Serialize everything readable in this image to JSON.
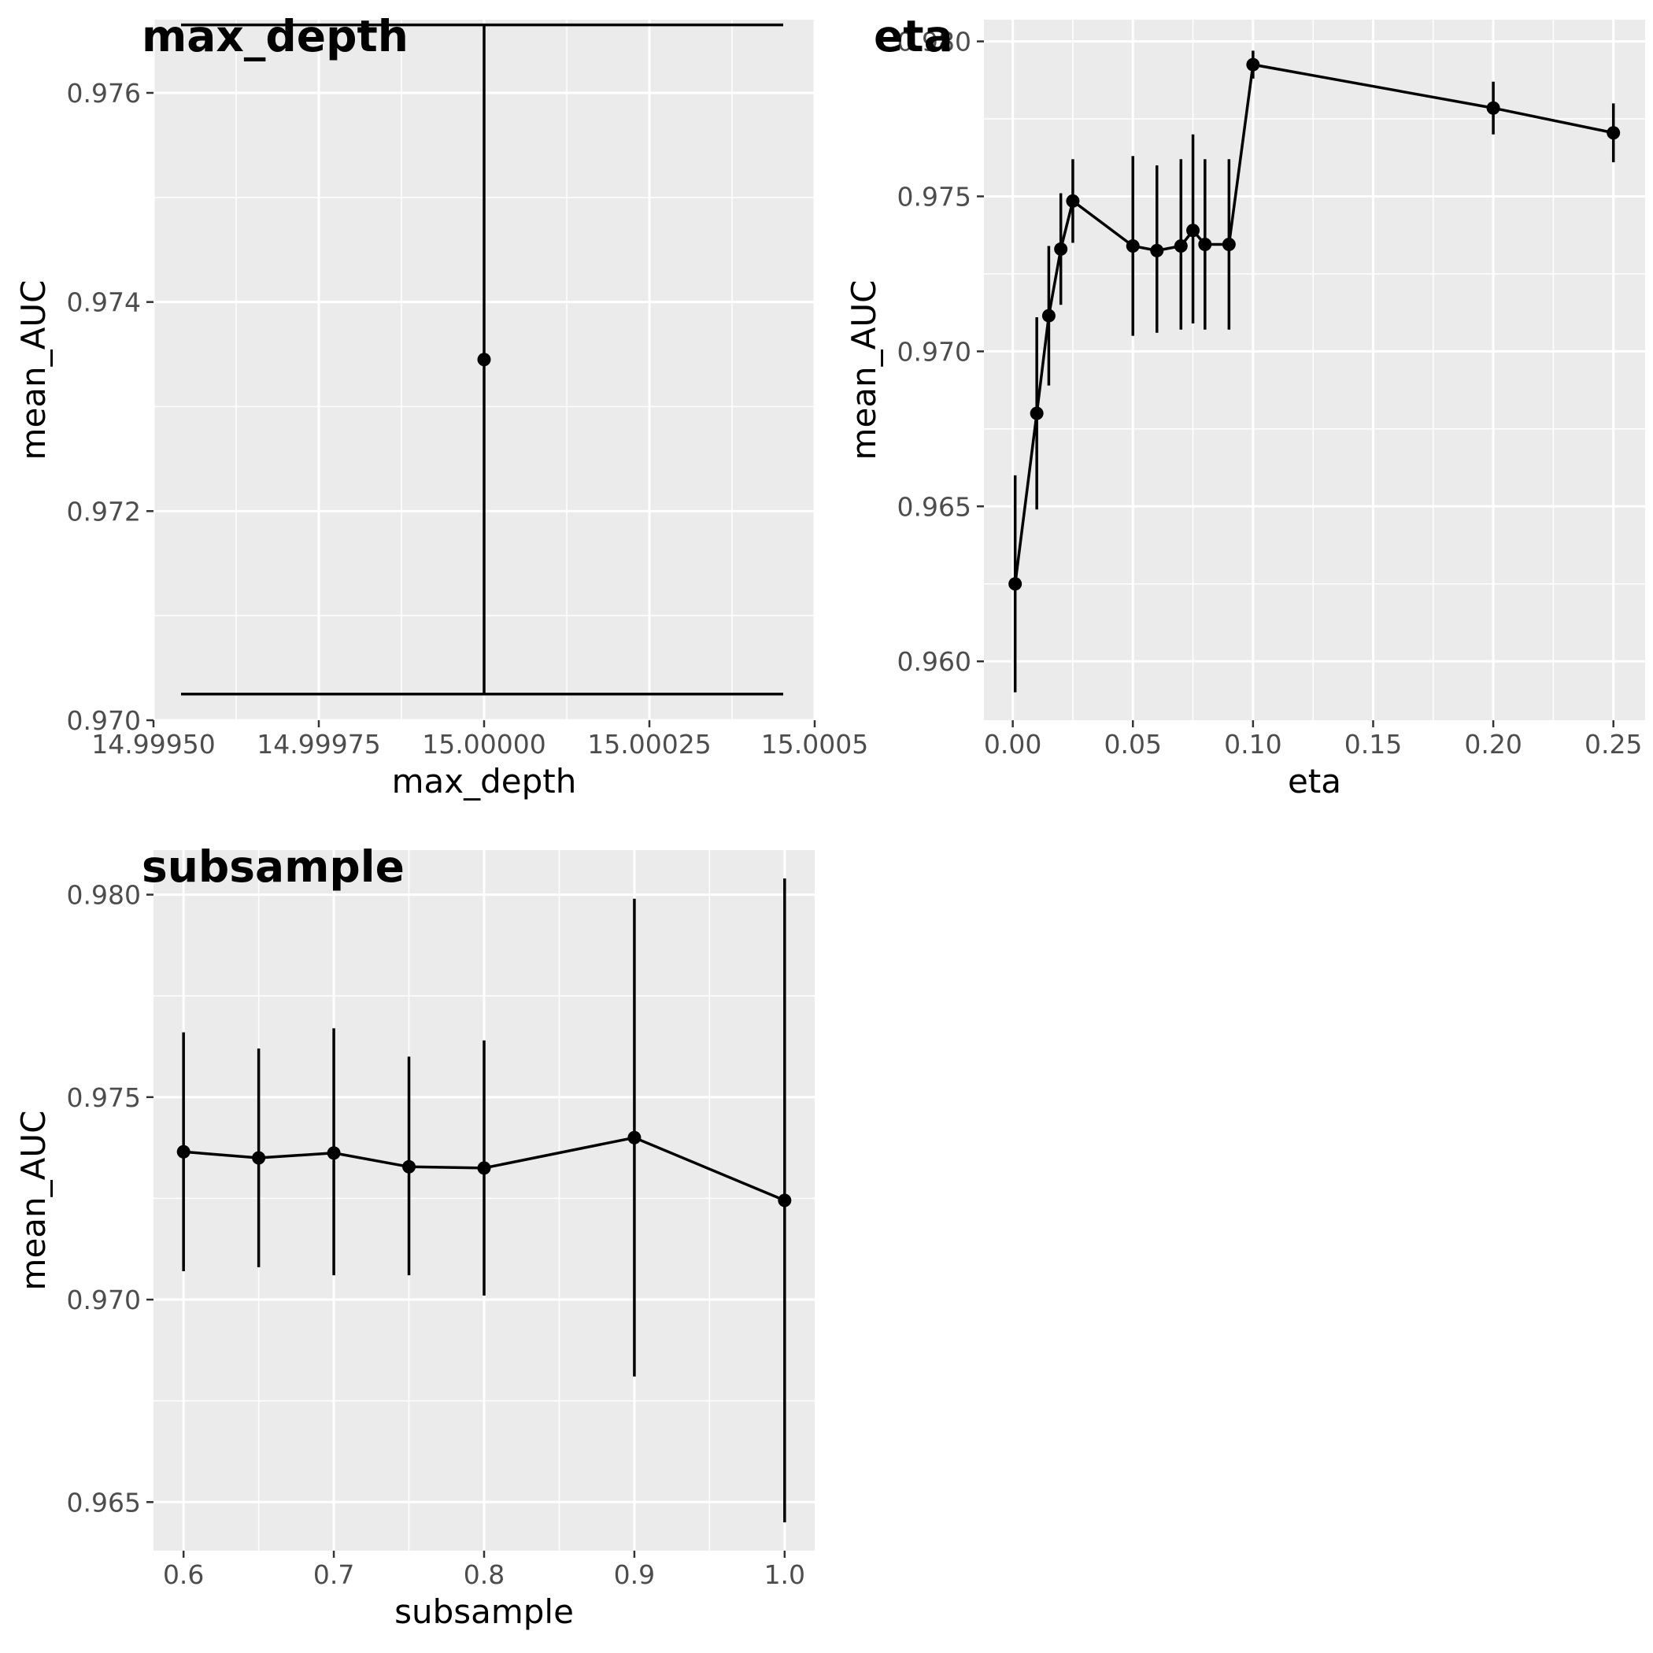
{
  "chart_data": [
    {
      "id": "max_depth",
      "type": "line",
      "title": "max_depth",
      "xlabel": "max_depth",
      "ylabel": "mean_AUC",
      "xlim": [
        14.9995,
        15.0005
      ],
      "ylim": [
        0.97,
        0.9767
      ],
      "x_ticks": [
        14.9995,
        14.99975,
        15.0,
        15.00025,
        15.0005
      ],
      "x_tick_labels": [
        "14.99950",
        "14.99975",
        "15.00000",
        "15.00025",
        "15.0005"
      ],
      "y_ticks": [
        0.97,
        0.972,
        0.974,
        0.976
      ],
      "y_tick_labels": [
        "0.970",
        "0.972",
        "0.974",
        "0.976"
      ],
      "grid": true,
      "errorbar_cap": true,
      "points": [
        {
          "x": 15.0,
          "y": 0.97345,
          "ymin": 0.97025,
          "ymax": 0.97665
        }
      ]
    },
    {
      "id": "eta",
      "type": "line",
      "title": "eta",
      "xlabel": "eta",
      "ylabel": "mean_AUC",
      "xlim": [
        -0.012,
        0.2632
      ],
      "ylim": [
        0.9581,
        0.9807
      ],
      "x_ticks": [
        0.0,
        0.05,
        0.1,
        0.15,
        0.2,
        0.25
      ],
      "x_tick_labels": [
        "0.00",
        "0.05",
        "0.10",
        "0.15",
        "0.20",
        "0.25"
      ],
      "y_ticks": [
        0.96,
        0.965,
        0.97,
        0.975,
        0.98
      ],
      "y_tick_labels": [
        "0.960",
        "0.965",
        "0.970",
        "0.975",
        "0.980"
      ],
      "grid": true,
      "errorbar_cap": false,
      "points": [
        {
          "x": 0.001,
          "y": 0.9625,
          "ymin": 0.959,
          "ymax": 0.966
        },
        {
          "x": 0.01,
          "y": 0.968,
          "ymin": 0.9649,
          "ymax": 0.9711
        },
        {
          "x": 0.015,
          "y": 0.97115,
          "ymin": 0.9689,
          "ymax": 0.9734
        },
        {
          "x": 0.02,
          "y": 0.9733,
          "ymin": 0.9715,
          "ymax": 0.9751
        },
        {
          "x": 0.025,
          "y": 0.97485,
          "ymin": 0.9735,
          "ymax": 0.9762
        },
        {
          "x": 0.05,
          "y": 0.9734,
          "ymin": 0.9705,
          "ymax": 0.9763
        },
        {
          "x": 0.06,
          "y": 0.97325,
          "ymin": 0.9706,
          "ymax": 0.976
        },
        {
          "x": 0.07,
          "y": 0.9734,
          "ymin": 0.9707,
          "ymax": 0.9762
        },
        {
          "x": 0.075,
          "y": 0.9739,
          "ymin": 0.9709,
          "ymax": 0.977
        },
        {
          "x": 0.08,
          "y": 0.97345,
          "ymin": 0.9707,
          "ymax": 0.9762
        },
        {
          "x": 0.09,
          "y": 0.97345,
          "ymin": 0.9707,
          "ymax": 0.9762
        },
        {
          "x": 0.1,
          "y": 0.97925,
          "ymin": 0.9788,
          "ymax": 0.9797
        },
        {
          "x": 0.2,
          "y": 0.97785,
          "ymin": 0.977,
          "ymax": 0.9787
        },
        {
          "x": 0.25,
          "y": 0.97705,
          "ymin": 0.9761,
          "ymax": 0.978
        }
      ]
    },
    {
      "id": "subsample",
      "type": "line",
      "title": "subsample",
      "xlabel": "subsample",
      "ylabel": "mean_AUC",
      "xlim": [
        0.58,
        1.02
      ],
      "ylim": [
        0.9638,
        0.9811
      ],
      "x_ticks": [
        0.6,
        0.7,
        0.8,
        0.9,
        1.0
      ],
      "x_tick_labels": [
        "0.6",
        "0.7",
        "0.8",
        "0.9",
        "1.0"
      ],
      "y_ticks": [
        0.965,
        0.97,
        0.975,
        0.98
      ],
      "y_tick_labels": [
        "0.965",
        "0.970",
        "0.975",
        "0.980"
      ],
      "grid": true,
      "errorbar_cap": false,
      "points": [
        {
          "x": 0.6,
          "y": 0.97365,
          "ymin": 0.9707,
          "ymax": 0.9766
        },
        {
          "x": 0.65,
          "y": 0.9735,
          "ymin": 0.9708,
          "ymax": 0.9762
        },
        {
          "x": 0.7,
          "y": 0.97362,
          "ymin": 0.9706,
          "ymax": 0.9767
        },
        {
          "x": 0.75,
          "y": 0.97328,
          "ymin": 0.9706,
          "ymax": 0.976
        },
        {
          "x": 0.8,
          "y": 0.97325,
          "ymin": 0.9701,
          "ymax": 0.9764
        },
        {
          "x": 0.9,
          "y": 0.974,
          "ymin": 0.9681,
          "ymax": 0.9799
        },
        {
          "x": 1.0,
          "y": 0.97245,
          "ymin": 0.9645,
          "ymax": 0.9804
        }
      ]
    }
  ]
}
